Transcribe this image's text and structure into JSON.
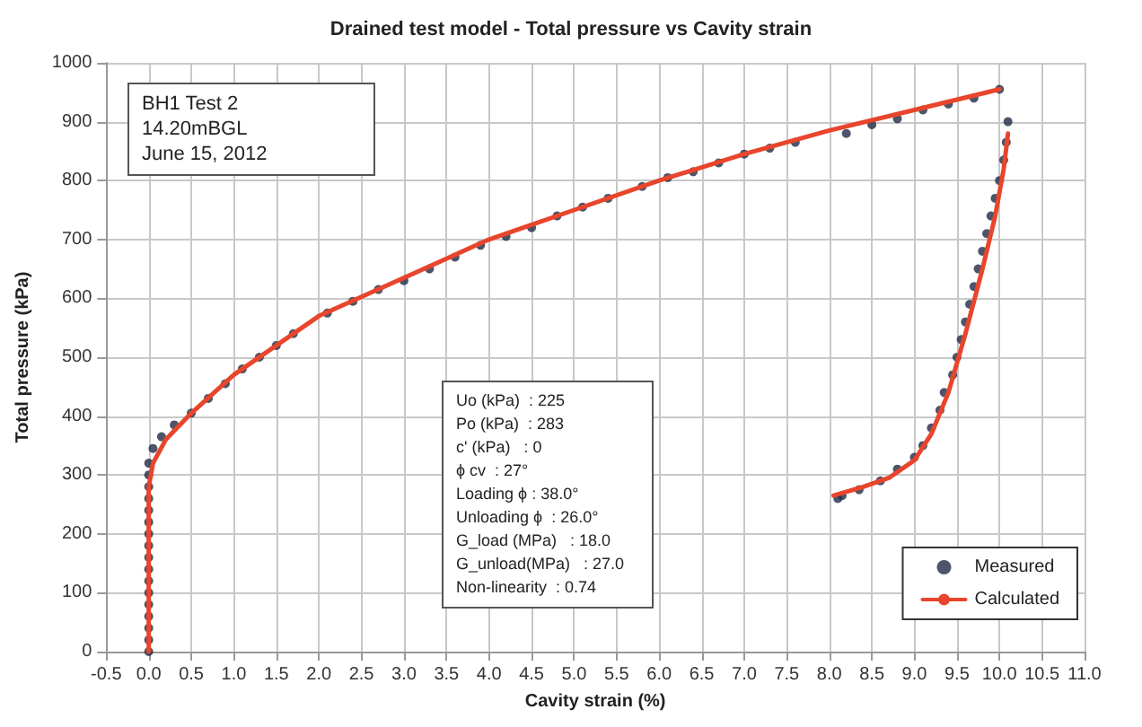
{
  "chart_data": {
    "type": "scatter",
    "title": "Drained test model - Total pressure vs Cavity strain",
    "xlabel": "Cavity strain (%)",
    "ylabel": "Total pressure (kPa)",
    "annotations": [
      "BH1 Test 2\n14.20mBGL\nJune 15, 2012",
      "Uo (kPa)  : 225\nPo (kPa)  : 283\nc' (kPa)   : 0\nϕ cv  : 27°\nLoading ϕ : 38.0°\nUnloading ϕ  : 26.0°\nG_load (MPa)   : 18.0\nG_unload(MPa)   : 27.0\nNon-linearity  : 0.74"
    ],
    "series": [
      {
        "name": "Measured",
        "color": "#1f2a44",
        "marker": "circle",
        "x": [
          0,
          0,
          0,
          0,
          0,
          0,
          0,
          0,
          0,
          0,
          0,
          0,
          0,
          0,
          0,
          0,
          0,
          0.05,
          0.15,
          0.3,
          0.5,
          0.7,
          0.9,
          1.1,
          1.3,
          1.5,
          1.7,
          2.1,
          2.4,
          2.7,
          3.0,
          3.3,
          3.6,
          3.9,
          4.2,
          4.5,
          4.8,
          5.1,
          5.4,
          5.8,
          6.1,
          6.4,
          6.7,
          7.0,
          7.3,
          7.6,
          8.2,
          8.5,
          8.8,
          9.1,
          9.4,
          9.7,
          10.0,
          10.1,
          10.08,
          10.05,
          10.0,
          9.95,
          9.9,
          9.85,
          9.8,
          9.75,
          9.7,
          9.65,
          9.6,
          9.55,
          9.5,
          9.45,
          9.35,
          9.3,
          9.2,
          9.1,
          9.0,
          8.8,
          8.6,
          8.35,
          8.15,
          8.1
        ],
        "values": [
          0,
          20,
          40,
          60,
          80,
          100,
          120,
          140,
          160,
          180,
          200,
          220,
          240,
          260,
          280,
          300,
          320,
          345,
          365,
          385,
          405,
          430,
          455,
          480,
          500,
          520,
          540,
          575,
          595,
          615,
          630,
          650,
          670,
          690,
          705,
          720,
          740,
          755,
          770,
          790,
          805,
          815,
          830,
          845,
          855,
          865,
          880,
          895,
          905,
          920,
          930,
          940,
          955,
          900,
          865,
          835,
          800,
          770,
          740,
          710,
          680,
          650,
          620,
          590,
          560,
          530,
          500,
          470,
          440,
          410,
          380,
          350,
          330,
          310,
          290,
          275,
          265,
          260
        ]
      },
      {
        "name": "Calculated",
        "type": "line",
        "color": "#e8452c",
        "marker": "none",
        "line_style": "solid",
        "x": [
          0,
          0,
          0.05,
          0.2,
          0.5,
          1,
          2,
          3,
          4,
          5,
          6,
          7,
          8,
          9,
          10,
          10.05,
          10.1,
          10.05,
          9.95,
          9.8,
          9.6,
          9.4,
          9.2,
          9.0,
          8.7,
          8.4,
          8.05
        ],
        "values": [
          0,
          280,
          320,
          360,
          405,
          470,
          570,
          635,
          700,
          750,
          800,
          845,
          885,
          920,
          955,
          null,
          880,
          820,
          740,
          650,
          540,
          440,
          370,
          325,
          295,
          280,
          265
        ]
      }
    ],
    "xlim": [
      -0.5,
      11.0
    ],
    "xticks": [
      {
        "value": -0.5,
        "label": "-0.5"
      },
      {
        "value": 0,
        "label": "0.0"
      },
      {
        "value": 0.5,
        "label": "0.5"
      },
      {
        "value": 1,
        "label": "1.0"
      },
      {
        "value": 1.5,
        "label": "1.5"
      },
      {
        "value": 2,
        "label": "2.0"
      },
      {
        "value": 2.5,
        "label": "2.5"
      },
      {
        "value": 3,
        "label": "3.0"
      },
      {
        "value": 3.5,
        "label": "3.5"
      },
      {
        "value": 4,
        "label": "4.0"
      },
      {
        "value": 4.5,
        "label": "4.5"
      },
      {
        "value": 5,
        "label": "5.0"
      },
      {
        "value": 5.5,
        "label": "5.5"
      },
      {
        "value": 6,
        "label": "6.0"
      },
      {
        "value": 6.5,
        "label": "6.5"
      },
      {
        "value": 7,
        "label": "7.0"
      },
      {
        "value": 7.5,
        "label": "7.5"
      },
      {
        "value": 8,
        "label": "8.0"
      },
      {
        "value": 8.5,
        "label": "8.5"
      },
      {
        "value": 9,
        "label": "9.0"
      },
      {
        "value": 9.5,
        "label": "9.5"
      },
      {
        "value": 10,
        "label": "10.0"
      },
      {
        "value": 10.5,
        "label": "10.5"
      },
      {
        "value": 11,
        "label": "11.0"
      }
    ],
    "ylim": [
      0,
      1000
    ],
    "yticks": [
      0,
      100,
      200,
      300,
      400,
      500,
      600,
      700,
      800,
      900,
      1000
    ],
    "grid": true,
    "legend": "bottom right"
  }
}
